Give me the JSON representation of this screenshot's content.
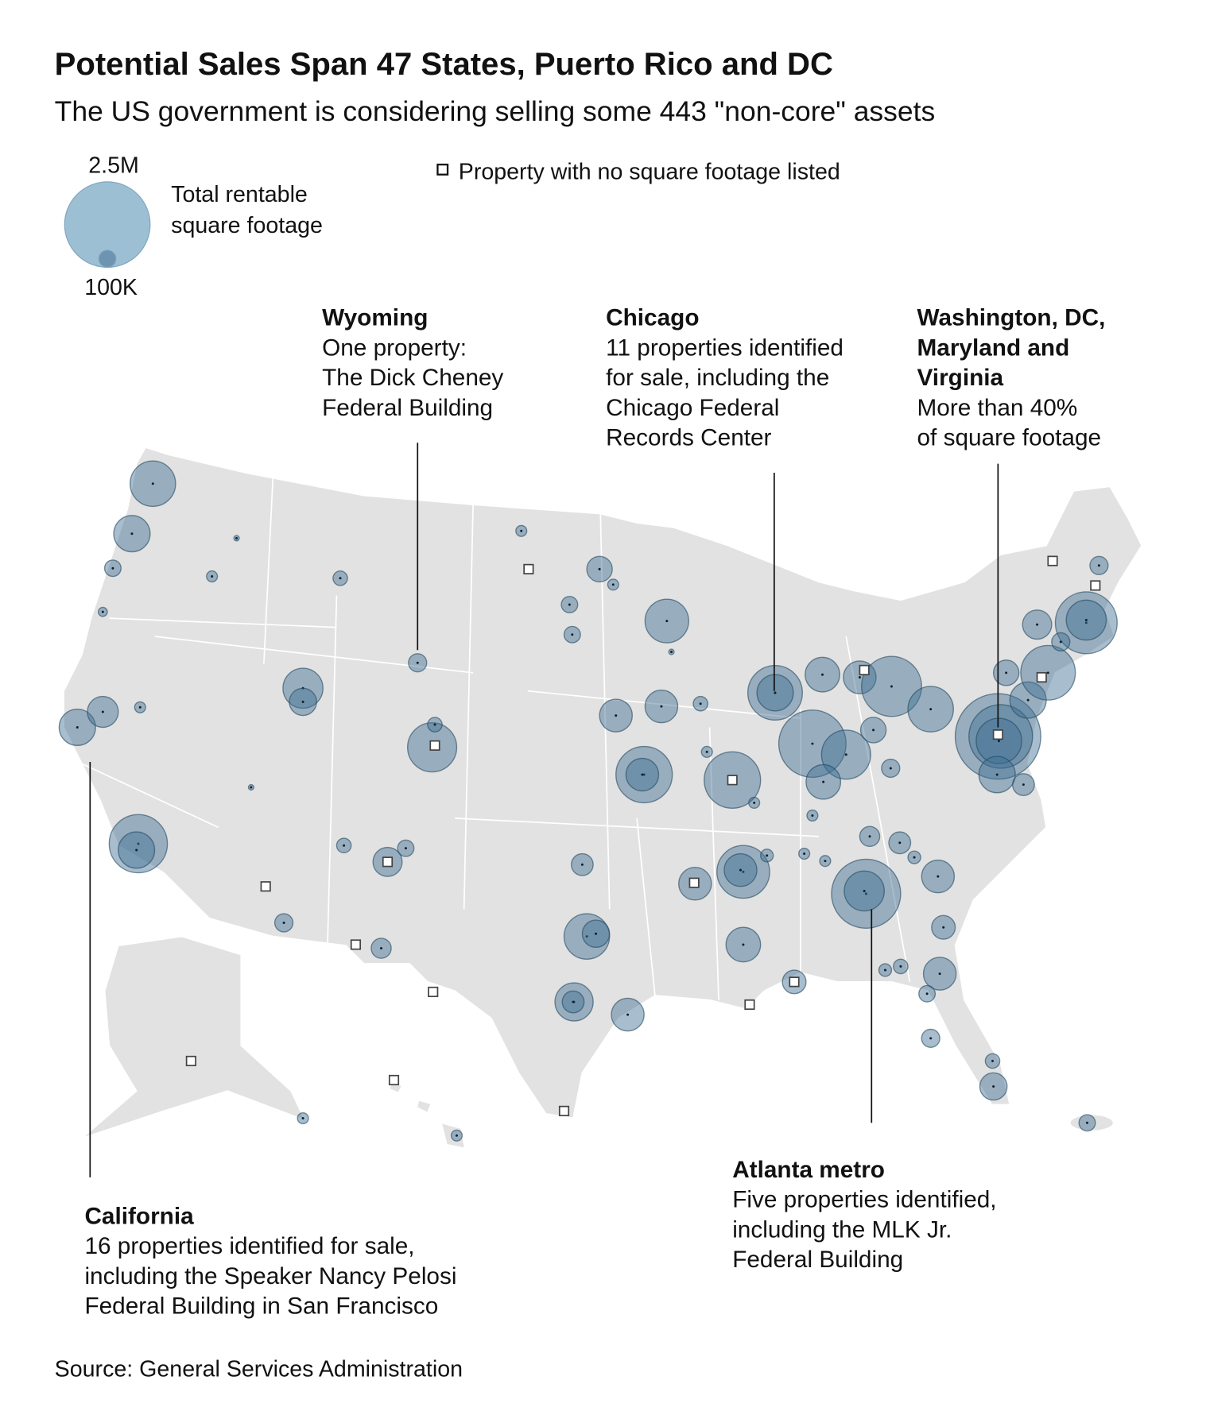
{
  "header": {
    "title": "Potential Sales Span 47 States, Puerto Rico and DC",
    "subtitle": "The US government is considering selling some 443 \"non-core\" assets"
  },
  "legend": {
    "size_max": {
      "value": 2500000,
      "label": "2.5M"
    },
    "size_min": {
      "value": 100000,
      "label": "100K"
    },
    "size_title_lines": [
      "Total rentable",
      "square footage"
    ],
    "no_sqft_label": "Property with no square footage listed"
  },
  "annotations": [
    {
      "title_lines": [
        "Wyoming"
      ],
      "body_lines": [
        "One property:",
        "The Dick Cheney",
        "Federal Building"
      ]
    },
    {
      "title_lines": [
        "Chicago"
      ],
      "body_lines": [
        "11 properties identified",
        "for sale, including the",
        "Chicago Federal",
        "Records Center"
      ]
    },
    {
      "title_lines": [
        "Washington, DC,",
        "Maryland and",
        "Virginia"
      ],
      "body_lines": [
        "More than 40%",
        "of square footage"
      ]
    },
    {
      "title_lines": [
        "California"
      ],
      "body_lines": [
        "16 properties identified for sale,",
        "including the Speaker Nancy Pelosi",
        "Federal Building in San Francisco"
      ]
    },
    {
      "title_lines": [
        "Atlanta metro"
      ],
      "body_lines": [
        "Five properties identified,",
        "including the MLK Jr.",
        "Federal Building"
      ]
    }
  ],
  "properties": {
    "color": "#3f6f92",
    "stroke": "#23475f",
    "sqft": [
      707000,
      452000,
      92000,
      28000,
      452000,
      327000,
      41000,
      1158000,
      452000,
      41000,
      10000,
      547000,
      254000,
      72000,
      113000,
      825000,
      72000,
      10000,
      72000,
      290000,
      92000,
      113000,
      137000,
      41000,
      222000,
      41000,
      92000,
      92000,
      651000,
      10000,
      366000,
      366000,
      72000,
      1087000,
      366000,
      1087000,
      41000,
      41000,
      1018000,
      452000,
      408000,
      1548000,
      825000,
      222000,
      408000,
      366000,
      1232000,
      707000,
      2500000,
      1385000,
      707000,
      452000,
      222000,
      452000,
      1018000,
      290000,
      1307000,
      547000,
      113000,
      113000,
      163000,
      113000,
      41000,
      137000,
      163000,
      55000,
      366000,
      191000,
      366000,
      92000,
      113000,
      72000,
      254000,
      1633000,
      547000,
      72000,
      55000,
      951000,
      366000,
      55000,
      41000,
      41000,
      366000,
      163000,
      707000,
      254000,
      408000,
      191000,
      499000,
      163000,
      366000,
      41000,
      41000,
      92000
    ]
  }
}
